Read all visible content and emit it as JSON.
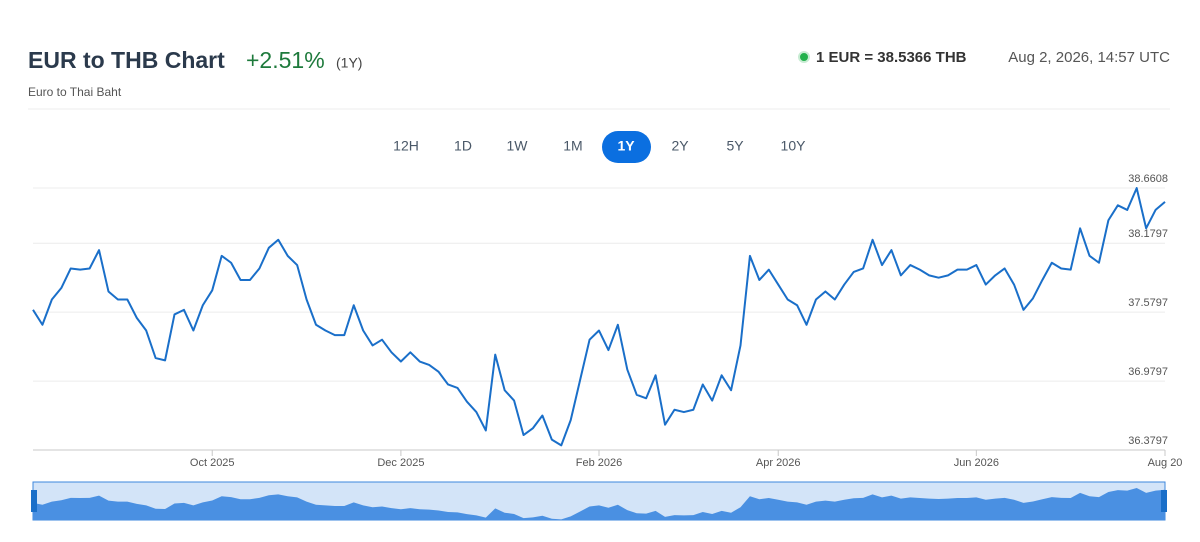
{
  "header": {
    "title": "EUR to THB Chart",
    "change": "+2.51%",
    "period": "(1Y)",
    "subtitle": "Euro to Thai Baht",
    "rate": "1 EUR = 38.5366 THB",
    "timestamp": "Aug 2, 2026, 14:57 UTC",
    "ranges": [
      "12H",
      "1D",
      "1W",
      "1M",
      "1Y",
      "2Y",
      "5Y",
      "10Y"
    ]
  },
  "chart_data": {
    "type": "line",
    "color": "#1a6fc9",
    "navigator_color": "#4a90e2",
    "grid": true,
    "ylim": [
      36.3797,
      38.6608
    ],
    "yticks": [
      36.3797,
      36.9797,
      37.5797,
      38.1797,
      38.6608
    ],
    "categories": [
      null,
      null,
      null,
      null,
      null,
      null,
      null,
      null,
      null,
      null,
      null,
      null,
      null,
      null,
      null,
      null,
      null,
      null,
      null,
      "Oct 2025",
      null,
      null,
      null,
      null,
      null,
      null,
      null,
      null,
      null,
      null,
      null,
      null,
      null,
      null,
      null,
      null,
      null,
      null,
      null,
      "Dec 2025",
      null,
      null,
      null,
      null,
      null,
      null,
      null,
      null,
      null,
      null,
      null,
      null,
      null,
      null,
      null,
      null,
      null,
      null,
      null,
      null,
      "Feb 2026",
      null,
      null,
      null,
      null,
      null,
      null,
      null,
      null,
      null,
      null,
      null,
      null,
      null,
      null,
      null,
      null,
      null,
      null,
      "Apr 2026",
      null,
      null,
      null,
      null,
      null,
      null,
      null,
      null,
      null,
      null,
      null,
      null,
      null,
      null,
      null,
      null,
      null,
      null,
      null,
      null,
      "Jun 2026",
      null,
      null,
      null,
      null,
      null,
      null,
      null,
      null,
      null,
      null,
      null,
      null,
      null,
      null,
      null,
      null,
      null,
      null,
      null,
      "Aug 20"
    ],
    "values": [
      37.6,
      37.47,
      37.69,
      37.79,
      37.96,
      37.95,
      37.96,
      38.12,
      37.76,
      37.69,
      37.69,
      37.53,
      37.42,
      37.18,
      37.16,
      37.56,
      37.6,
      37.42,
      37.64,
      37.77,
      38.07,
      38.01,
      37.86,
      37.86,
      37.96,
      38.14,
      38.21,
      38.07,
      37.99,
      37.69,
      37.47,
      37.42,
      37.38,
      37.38,
      37.64,
      37.42,
      37.29,
      37.34,
      37.23,
      37.15,
      37.23,
      37.15,
      37.12,
      37.06,
      36.95,
      36.92,
      36.8,
      36.71,
      36.55,
      37.21,
      36.9,
      36.81,
      36.51,
      36.57,
      36.68,
      36.47,
      36.42,
      36.64,
      36.99,
      37.34,
      37.42,
      37.25,
      37.47,
      37.08,
      36.86,
      36.83,
      37.03,
      36.6,
      36.73,
      36.71,
      36.73,
      36.95,
      36.81,
      37.03,
      36.9,
      37.29,
      38.07,
      37.86,
      37.95,
      37.82,
      37.69,
      37.64,
      37.47,
      37.69,
      37.76,
      37.69,
      37.82,
      37.93,
      37.96,
      38.21,
      37.99,
      38.12,
      37.9,
      37.99,
      37.95,
      37.9,
      37.88,
      37.9,
      37.95,
      37.95,
      37.99,
      37.82,
      37.9,
      37.96,
      37.82,
      37.6,
      37.7,
      37.86,
      38.01,
      37.96,
      37.95,
      38.31,
      38.07,
      38.01,
      38.38,
      38.51,
      38.47,
      38.66,
      38.31,
      38.47,
      38.54
    ]
  }
}
